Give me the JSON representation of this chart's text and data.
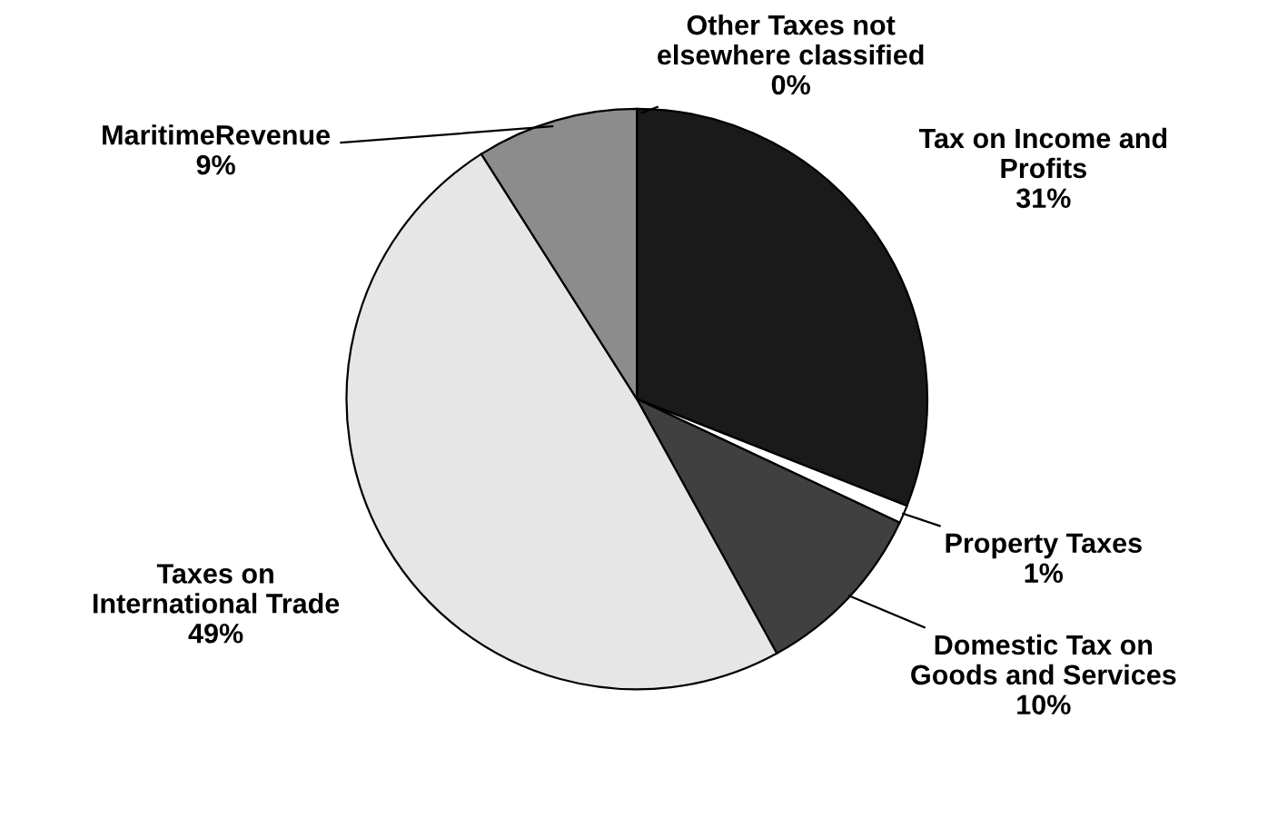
{
  "chart_data": {
    "type": "pie",
    "categories": [
      "Tax on Income and\nProfits",
      "Property Taxes",
      "Domestic Tax on\nGoods and Services",
      "Taxes on\nInternational Trade",
      "MaritimeRevenue",
      "Other Taxes not\nelsewhere classified"
    ],
    "values": [
      31,
      1,
      10,
      49,
      9,
      0
    ],
    "value_labels": [
      "31%",
      "1%",
      "10%",
      "49%",
      "9%",
      "0%"
    ],
    "colors": [
      "#1a1a1a",
      "#ffffff",
      "#404040",
      "#e6e6e6",
      "#8c8c8c",
      "#000000"
    ]
  }
}
